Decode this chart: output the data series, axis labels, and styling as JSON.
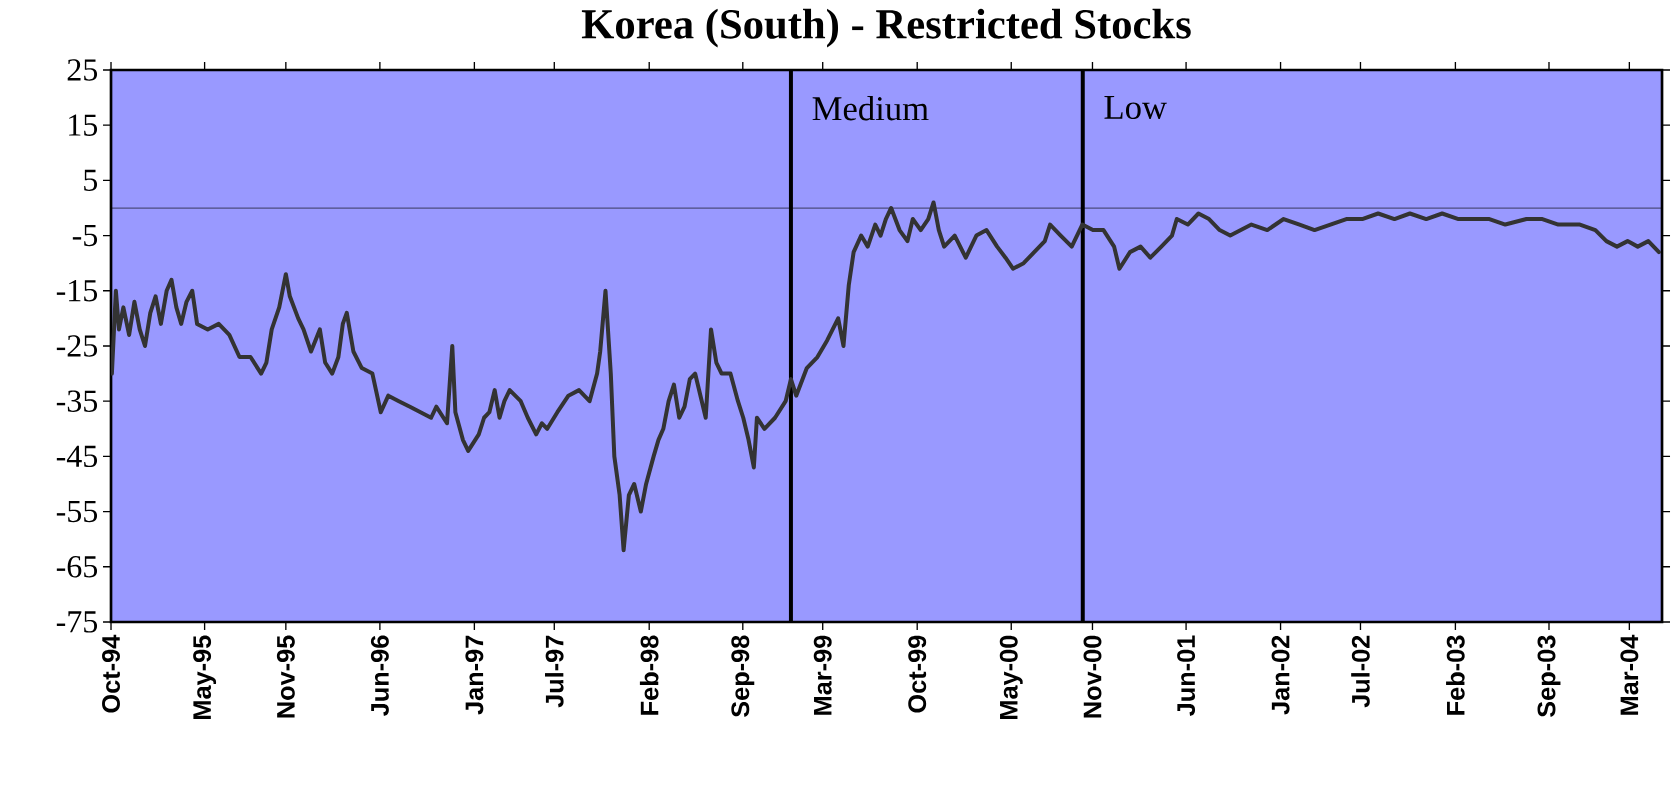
{
  "chart_data": {
    "type": "line",
    "title": "Korea (South) - Restricted Stocks",
    "x": [
      "1994-10-03",
      "1994-10-12",
      "1994-10-19",
      "1994-10-29",
      "1994-11-11",
      "1994-11-23",
      "1994-12-05",
      "1994-12-17",
      "1994-12-29",
      "1995-01-10",
      "1995-01-22",
      "1995-02-04",
      "1995-02-15",
      "1995-02-26",
      "1995-03-09",
      "1995-03-21",
      "1995-04-03",
      "1995-04-14",
      "1995-05-08",
      "1995-06-02",
      "1995-06-26",
      "1995-07-19",
      "1995-08-13",
      "1995-09-06",
      "1995-09-18",
      "1995-09-30",
      "1995-10-17",
      "1995-11-01",
      "1995-11-10",
      "1995-11-29",
      "1995-12-11",
      "1995-12-28",
      "1996-01-17",
      "1996-01-29",
      "1996-02-14",
      "1996-02-28",
      "1996-03-09",
      "1996-03-18",
      "1996-04-02",
      "1996-04-21",
      "1996-05-15",
      "1996-06-03",
      "1996-06-20",
      "1996-07-14",
      "1996-08-08",
      "1996-09-01",
      "1996-09-25",
      "1996-10-07",
      "1996-10-31",
      "1996-11-12",
      "1996-11-19",
      "1996-12-06",
      "1996-12-18",
      "1997-01-11",
      "1997-01-23",
      "1997-02-04",
      "1997-02-16",
      "1997-02-27",
      "1997-03-10",
      "1997-03-22",
      "1997-04-16",
      "1997-05-02",
      "1997-05-21",
      "1997-06-03",
      "1997-06-15",
      "1997-07-08",
      "1997-08-02",
      "1997-08-26",
      "1997-09-19",
      "1997-10-06",
      "1997-10-13",
      "1997-10-25",
      "1997-11-06",
      "1997-11-14",
      "1997-11-26",
      "1997-12-05",
      "1997-12-17",
      "1997-12-29",
      "1998-01-13",
      "1998-01-25",
      "1998-02-11",
      "1998-02-22",
      "1998-03-05",
      "1998-03-17",
      "1998-03-29",
      "1998-04-10",
      "1998-04-22",
      "1998-05-04",
      "1998-05-16",
      "1998-06-09",
      "1998-06-21",
      "1998-07-03",
      "1998-07-15",
      "1998-08-04",
      "1998-08-21",
      "1998-09-02",
      "1998-09-14",
      "1998-09-26",
      "1998-10-03",
      "1998-10-20",
      "1998-11-13",
      "1998-12-07",
      "1998-12-19",
      "1998-12-31",
      "1999-01-24",
      "1999-02-17",
      "1999-03-11",
      "1999-04-05",
      "1999-04-17",
      "1999-04-29",
      "1999-05-10",
      "1999-05-27",
      "1999-06-11",
      "1999-06-28",
      "1999-07-10",
      "1999-07-22",
      "1999-08-03",
      "1999-08-22",
      "1999-09-09",
      "1999-09-21",
      "1999-10-09",
      "1999-10-26",
      "1999-11-07",
      "1999-11-19",
      "1999-12-01",
      "1999-12-25",
      "2000-01-19",
      "2000-02-12",
      "2000-03-06",
      "2000-03-30",
      "2000-04-18",
      "2000-05-05",
      "2000-05-29",
      "2000-06-22",
      "2000-07-16",
      "2000-07-28",
      "2000-08-21",
      "2000-09-15",
      "2000-10-09",
      "2000-11-02",
      "2000-11-26",
      "2000-12-20",
      "2001-01-01",
      "2001-01-25",
      "2001-02-18",
      "2001-03-12",
      "2001-04-06",
      "2001-04-30",
      "2001-05-11",
      "2001-06-05",
      "2001-06-29",
      "2001-07-23",
      "2001-08-16",
      "2001-09-09",
      "2001-10-03",
      "2001-10-27",
      "2001-12-02",
      "2002-01-08",
      "2002-02-13",
      "2002-03-19",
      "2002-04-24",
      "2002-05-30",
      "2002-07-05",
      "2002-08-10",
      "2002-09-16",
      "2002-10-21",
      "2002-11-27",
      "2003-01-02",
      "2003-02-08",
      "2003-03-14",
      "2003-04-19",
      "2003-05-25",
      "2003-07-12",
      "2003-08-17",
      "2003-09-22",
      "2003-11-10",
      "2003-12-15",
      "2004-01-09",
      "2004-02-02",
      "2004-02-26",
      "2004-03-20",
      "2004-04-13",
      "2004-05-07"
    ],
    "series": [
      {
        "color": "#333333",
        "values": [
          -30,
          -15,
          -22,
          -18,
          -23,
          -17,
          -22,
          -25,
          -19,
          -16,
          -21,
          -15,
          -13,
          -18,
          -21,
          -17,
          -15,
          -21,
          -22,
          -21,
          -23,
          -27,
          -27,
          -30,
          -28,
          -22,
          -18,
          -12,
          -16,
          -20,
          -22,
          -26,
          -22,
          -28,
          -30,
          -27,
          -21,
          -19,
          -26,
          -29,
          -30,
          -37,
          -34,
          -35,
          -36,
          -37,
          -38,
          -36,
          -39,
          -25,
          -37,
          -42,
          -44,
          -41,
          -38,
          -37,
          -33,
          -38,
          -35,
          -33,
          -35,
          -38,
          -41,
          -39,
          -40,
          -37,
          -34,
          -33,
          -35,
          -30,
          -26,
          -15,
          -30,
          -45,
          -52,
          -62,
          -52,
          -50,
          -55,
          -50,
          -45,
          -42,
          -40,
          -35,
          -32,
          -38,
          -36,
          -31,
          -30,
          -38,
          -22,
          -28,
          -30,
          -30,
          -35,
          -38,
          -42,
          -47,
          -38,
          -40,
          -38,
          -35,
          -31,
          -34,
          -29,
          -27,
          -24,
          -20,
          -25,
          -14,
          -8,
          -5,
          -7,
          -3,
          -5,
          -2,
          0,
          -4,
          -6,
          -2,
          -4,
          -2,
          1,
          -4,
          -7,
          -5,
          -9,
          -5,
          -4,
          -7,
          -9,
          -11,
          -10,
          -8,
          -6,
          -3,
          -5,
          -7,
          -3,
          -4,
          -4,
          -7,
          -11,
          -8,
          -7,
          -9,
          -7,
          -5,
          -2,
          -3,
          -1,
          -2,
          -4,
          -5,
          -4,
          -3,
          -4,
          -2,
          -3,
          -4,
          -3,
          -2,
          -2,
          -1,
          -2,
          -1,
          -2,
          -1,
          -2,
          -2,
          -2,
          -3,
          -2,
          -2,
          -3,
          -3,
          -4,
          -6,
          -7,
          -6,
          -7,
          -6,
          -8
        ]
      }
    ],
    "xlim": [
      "1994-10-01",
      "2004-05-14"
    ],
    "ylim": [
      -75,
      25
    ],
    "yticks": [
      25,
      15,
      5,
      -5,
      -15,
      -25,
      -35,
      -45,
      -55,
      -65,
      -75
    ],
    "xticks": [
      {
        "value": "1994-10-01",
        "label": "Oct-94"
      },
      {
        "value": "1995-05-01",
        "label": "May-95"
      },
      {
        "value": "1995-11-01",
        "label": "Nov-95"
      },
      {
        "value": "1996-06-01",
        "label": "Jun-96"
      },
      {
        "value": "1997-01-01",
        "label": "Jan-97"
      },
      {
        "value": "1997-07-01",
        "label": "Jul-97"
      },
      {
        "value": "1998-02-01",
        "label": "Feb-98"
      },
      {
        "value": "1998-09-01",
        "label": "Sep-98"
      },
      {
        "value": "1999-03-01",
        "label": "Mar-99"
      },
      {
        "value": "1999-10-01",
        "label": "Oct-99"
      },
      {
        "value": "2000-05-01",
        "label": "May-00"
      },
      {
        "value": "2000-11-01",
        "label": "Nov-00"
      },
      {
        "value": "2001-06-01",
        "label": "Jun-01"
      },
      {
        "value": "2002-01-01",
        "label": "Jan-02"
      },
      {
        "value": "2002-07-01",
        "label": "Jul-02"
      },
      {
        "value": "2003-02-01",
        "label": "Feb-03"
      },
      {
        "value": "2003-09-01",
        "label": "Sep-03"
      },
      {
        "value": "2004-03-01",
        "label": "Mar-04"
      }
    ],
    "ref_lines": [
      {
        "axis": "y",
        "value": 0,
        "color": "#000000"
      },
      {
        "axis": "x",
        "value": "1998-12-19",
        "label": "Medium",
        "color": "#000000"
      },
      {
        "axis": "x",
        "value": "2000-10-10",
        "label": "Low",
        "color": "#000000"
      }
    ]
  }
}
